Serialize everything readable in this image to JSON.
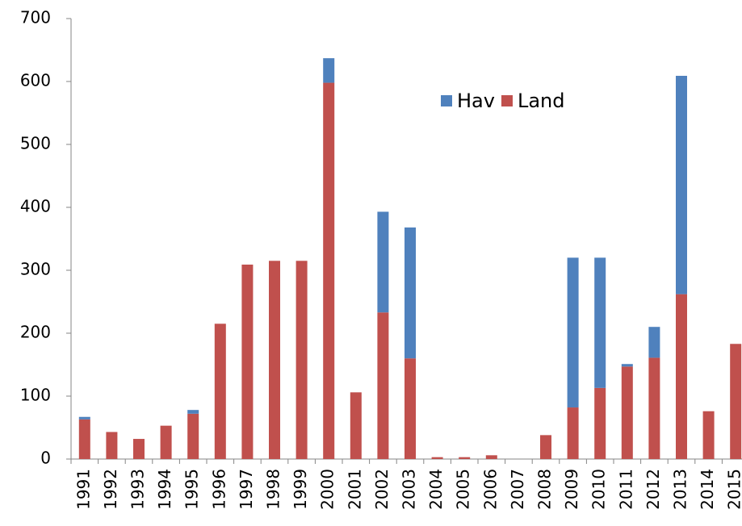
{
  "chart_data": {
    "type": "stacked-bar",
    "categories": [
      "1991",
      "1992",
      "1993",
      "1994",
      "1995",
      "1996",
      "1997",
      "1998",
      "1999",
      "2000",
      "2001",
      "2002",
      "2003",
      "2004",
      "2005",
      "2006",
      "2007",
      "2008",
      "2009",
      "2010",
      "2011",
      "2012",
      "2013",
      "2014",
      "2015"
    ],
    "series": [
      {
        "name": "Hav",
        "color": "#4f81bd",
        "values": [
          4,
          0,
          0,
          0,
          6,
          0,
          0,
          0,
          0,
          39,
          0,
          160,
          208,
          0,
          0,
          0,
          0,
          0,
          238,
          207,
          4,
          49,
          347,
          0,
          0
        ]
      },
      {
        "name": "Land",
        "color": "#c0504d",
        "values": [
          63,
          43,
          32,
          53,
          72,
          215,
          309,
          315,
          315,
          598,
          106,
          233,
          160,
          3,
          3,
          6,
          0,
          38,
          82,
          113,
          147,
          161,
          262,
          76,
          183
        ]
      }
    ],
    "ylim": [
      0,
      700
    ],
    "yticks": [
      0,
      100,
      200,
      300,
      400,
      500,
      600,
      700
    ]
  }
}
